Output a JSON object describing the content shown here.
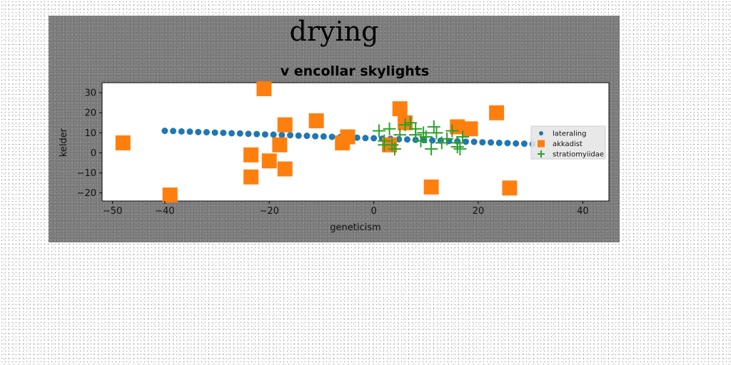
{
  "chart_data": {
    "type": "scatter",
    "suptitle": "drying",
    "title": "v encollar skylights",
    "xlabel": "geneticism",
    "ylabel": "kelder",
    "xlim": [
      -52,
      45
    ],
    "ylim": [
      -24,
      35
    ],
    "xticks": [
      -50,
      -40,
      -20,
      0,
      20,
      40
    ],
    "yticks": [
      -20,
      -10,
      0,
      10,
      20,
      30
    ],
    "grid": false,
    "legend_position": "center-right",
    "series": [
      {
        "name": "lateraling",
        "marker": "circle",
        "color": "#1f77b4",
        "points": [
          [
            -40,
            11.0
          ],
          [
            -38.4,
            10.9
          ],
          [
            -36.8,
            10.7
          ],
          [
            -35.2,
            10.6
          ],
          [
            -33.6,
            10.4
          ],
          [
            -32,
            10.3
          ],
          [
            -30.4,
            10.1
          ],
          [
            -28.8,
            10.0
          ],
          [
            -27.2,
            9.8
          ],
          [
            -25.6,
            9.7
          ],
          [
            -24,
            9.5
          ],
          [
            -22.4,
            9.4
          ],
          [
            -20.8,
            9.2
          ],
          [
            -19.2,
            9.1
          ],
          [
            -17.6,
            8.9
          ],
          [
            -16,
            8.8
          ],
          [
            -14.4,
            8.6
          ],
          [
            -12.8,
            8.5
          ],
          [
            -11.2,
            8.3
          ],
          [
            -9.6,
            8.2
          ],
          [
            -8,
            8.0
          ],
          [
            -6.4,
            7.9
          ],
          [
            -4.8,
            7.7
          ],
          [
            -3.2,
            7.6
          ],
          [
            -1.6,
            7.4
          ],
          [
            0,
            7.3
          ],
          [
            1.6,
            7.1
          ],
          [
            3.2,
            7.0
          ],
          [
            4.8,
            6.8
          ],
          [
            6.4,
            6.7
          ],
          [
            8,
            6.5
          ],
          [
            9.6,
            6.4
          ],
          [
            11.2,
            6.2
          ],
          [
            12.8,
            6.1
          ],
          [
            14.4,
            5.9
          ],
          [
            16,
            5.8
          ],
          [
            17.6,
            5.6
          ],
          [
            19.2,
            5.5
          ],
          [
            20.8,
            5.3
          ],
          [
            22.4,
            5.2
          ],
          [
            24,
            5.0
          ],
          [
            25.6,
            4.9
          ],
          [
            27.2,
            4.7
          ],
          [
            28.8,
            4.6
          ],
          [
            30.4,
            4.4
          ],
          [
            32,
            4.3
          ]
        ]
      },
      {
        "name": "akkadist",
        "marker": "square",
        "color": "#ff7f0e",
        "points": [
          [
            -48,
            5
          ],
          [
            -39,
            -21
          ],
          [
            -21,
            32
          ],
          [
            -23.5,
            -1
          ],
          [
            -23.5,
            -12
          ],
          [
            -18,
            4
          ],
          [
            -17,
            14
          ],
          [
            -17,
            -8
          ],
          [
            -20,
            -4
          ],
          [
            -11,
            16
          ],
          [
            -6,
            5
          ],
          [
            -5,
            8
          ],
          [
            3,
            4
          ],
          [
            5,
            22
          ],
          [
            6,
            15
          ],
          [
            11,
            -17
          ],
          [
            16,
            13
          ],
          [
            18.5,
            12
          ],
          [
            23.5,
            20
          ],
          [
            26,
            -17.5
          ]
        ]
      },
      {
        "name": "stratiomyiidae",
        "marker": "plus",
        "color": "#2ca02c",
        "points": [
          [
            1,
            11
          ],
          [
            2,
            6
          ],
          [
            2,
            4
          ],
          [
            3,
            12
          ],
          [
            3.5,
            4
          ],
          [
            4,
            2
          ],
          [
            5,
            9
          ],
          [
            6,
            14
          ],
          [
            7,
            15
          ],
          [
            8,
            12
          ],
          [
            8,
            9
          ],
          [
            9,
            6
          ],
          [
            9.5,
            10
          ],
          [
            10,
            8
          ],
          [
            11,
            2
          ],
          [
            11.5,
            13
          ],
          [
            12,
            10
          ],
          [
            13,
            5
          ],
          [
            14,
            7
          ],
          [
            15,
            11
          ],
          [
            16,
            3
          ],
          [
            16,
            5
          ],
          [
            16.5,
            2
          ],
          [
            17,
            8
          ]
        ]
      }
    ]
  }
}
